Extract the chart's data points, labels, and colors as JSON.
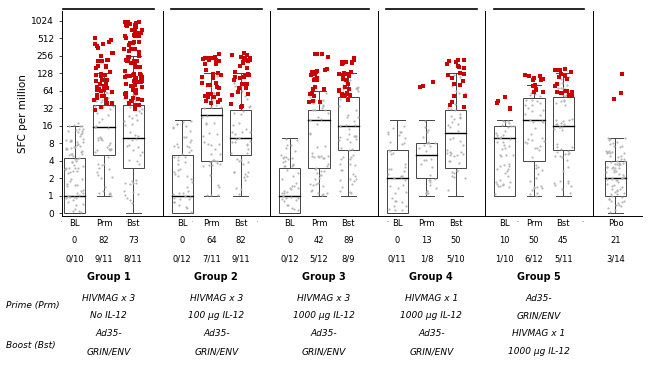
{
  "groups": [
    {
      "name": "Group 1",
      "timepoints": [
        "BL",
        "Prm",
        "Bst"
      ],
      "response_rates": [
        "0",
        "82",
        "73"
      ],
      "fractions": [
        "0/10",
        "9/11",
        "8/11"
      ],
      "boxes": [
        {
          "q1": 0,
          "median": 1,
          "q3": 4.5,
          "whislo": 0,
          "whishi": 16,
          "n_gray": 80,
          "gray_min": 0.5,
          "gray_max": 18,
          "n_red": 0,
          "red_min": 0,
          "red_max": 0
        },
        {
          "q1": 5,
          "median": 15,
          "q3": 36,
          "whislo": 1,
          "whishi": 128,
          "n_gray": 60,
          "gray_min": 1,
          "gray_max": 128,
          "n_red": 50,
          "red_min": 30,
          "red_max": 512
        },
        {
          "q1": 3,
          "median": 10,
          "q3": 36,
          "whislo": 0,
          "whishi": 256,
          "n_gray": 50,
          "gray_min": 0.5,
          "gray_max": 128,
          "n_red": 80,
          "red_min": 30,
          "red_max": 1024
        }
      ]
    },
    {
      "name": "Group 2",
      "timepoints": [
        "BL",
        "Prm",
        "Bst"
      ],
      "response_rates": [
        "0",
        "64",
        "82"
      ],
      "fractions": [
        "0/12",
        "7/11",
        "9/11"
      ],
      "boxes": [
        {
          "q1": 0,
          "median": 1,
          "q3": 5,
          "whislo": 0,
          "whishi": 20,
          "n_gray": 50,
          "gray_min": 0.5,
          "gray_max": 20,
          "n_red": 0,
          "red_min": 0,
          "red_max": 0
        },
        {
          "q1": 4,
          "median": 24,
          "q3": 32,
          "whislo": 1,
          "whishi": 128,
          "n_gray": 45,
          "gray_min": 1,
          "gray_max": 128,
          "n_red": 35,
          "red_min": 40,
          "red_max": 300
        },
        {
          "q1": 5,
          "median": 10,
          "q3": 30,
          "whislo": 1,
          "whishi": 128,
          "n_gray": 50,
          "gray_min": 1,
          "gray_max": 128,
          "n_red": 35,
          "red_min": 30,
          "red_max": 300
        }
      ]
    },
    {
      "name": "Group 3",
      "timepoints": [
        "BL",
        "Prm",
        "Bst"
      ],
      "response_rates": [
        "0",
        "42",
        "89"
      ],
      "fractions": [
        "0/12",
        "5/12",
        "8/9"
      ],
      "boxes": [
        {
          "q1": 0,
          "median": 1,
          "q3": 3,
          "whislo": 0,
          "whishi": 10,
          "n_gray": 45,
          "gray_min": 0.5,
          "gray_max": 10,
          "n_red": 0,
          "red_min": 0,
          "red_max": 0
        },
        {
          "q1": 3,
          "median": 20,
          "q3": 30,
          "whislo": 1,
          "whishi": 64,
          "n_gray": 55,
          "gray_min": 1,
          "gray_max": 64,
          "n_red": 25,
          "red_min": 40,
          "red_max": 300
        },
        {
          "q1": 6,
          "median": 16,
          "q3": 50,
          "whislo": 1,
          "whishi": 128,
          "n_gray": 60,
          "gray_min": 1,
          "gray_max": 128,
          "n_red": 30,
          "red_min": 40,
          "red_max": 256
        }
      ]
    },
    {
      "name": "Group 4",
      "timepoints": [
        "BL",
        "Prm",
        "Bst"
      ],
      "response_rates": [
        "0",
        "13",
        "50"
      ],
      "fractions": [
        "0/11",
        "1/8",
        "5/10"
      ],
      "boxes": [
        {
          "q1": 0,
          "median": 2,
          "q3": 6,
          "whislo": 0,
          "whishi": 20,
          "n_gray": 40,
          "gray_min": 0.5,
          "gray_max": 20,
          "n_red": 0,
          "red_min": 0,
          "red_max": 0
        },
        {
          "q1": 2,
          "median": 5,
          "q3": 8,
          "whislo": 1,
          "whishi": 20,
          "n_gray": 30,
          "gray_min": 1,
          "gray_max": 20,
          "n_red": 3,
          "red_min": 30,
          "red_max": 200
        },
        {
          "q1": 3,
          "median": 12,
          "q3": 30,
          "whislo": 1,
          "whishi": 128,
          "n_gray": 45,
          "gray_min": 1,
          "gray_max": 128,
          "n_red": 20,
          "red_min": 30,
          "red_max": 256
        }
      ]
    },
    {
      "name": "Group 5",
      "timepoints": [
        "BL",
        "Prm",
        "Bst"
      ],
      "response_rates": [
        "10",
        "50",
        "45"
      ],
      "fractions": [
        "1/10",
        "6/12",
        "5/11"
      ],
      "boxes": [
        {
          "q1": 1,
          "median": 10,
          "q3": 16,
          "whislo": 1,
          "whishi": 20,
          "n_gray": 45,
          "gray_min": 1,
          "gray_max": 20,
          "n_red": 5,
          "red_min": 25,
          "red_max": 50
        },
        {
          "q1": 4,
          "median": 20,
          "q3": 48,
          "whislo": 1,
          "whishi": 80,
          "n_gray": 50,
          "gray_min": 1,
          "gray_max": 80,
          "n_red": 15,
          "red_min": 60,
          "red_max": 128
        },
        {
          "q1": 6,
          "median": 16,
          "q3": 50,
          "whislo": 1,
          "whishi": 128,
          "n_gray": 55,
          "gray_min": 1,
          "gray_max": 128,
          "n_red": 20,
          "red_min": 50,
          "red_max": 160
        }
      ]
    },
    {
      "name": "Pbo",
      "timepoints": [
        "Pbo"
      ],
      "response_rates": [
        "21"
      ],
      "fractions": [
        "3/14"
      ],
      "boxes": [
        {
          "q1": 1,
          "median": 2,
          "q3": 4,
          "whislo": 0,
          "whishi": 10,
          "n_gray": 80,
          "gray_min": 0.5,
          "gray_max": 10,
          "n_red": 3,
          "red_min": 30,
          "red_max": 128
        }
      ]
    }
  ],
  "group_labels": [
    [
      "Group 1",
      "HIVMAG x 3",
      "No IL-12",
      "Ad35-",
      "GRIN/ENV"
    ],
    [
      "Group 2",
      "HIVMAG x 3",
      "100 μg IL-12",
      "Ad35-",
      "GRIN/ENV"
    ],
    [
      "Group 3",
      "HIVMAG x 3",
      "1000 μg IL-12",
      "Ad35-",
      "GRIN/ENV"
    ],
    [
      "Group 4",
      "HIVMAG x 1",
      "1000 μg IL-12",
      "Ad35-",
      "GRIN/ENV"
    ],
    [
      "Group 5",
      "Ad35-",
      "GRIN/ENV",
      "HIVMAG x 1",
      "1000 μg IL-12"
    ]
  ],
  "ylabel": "SFC per million",
  "yticks": [
    0,
    1,
    2,
    4,
    8,
    16,
    32,
    64,
    128,
    256,
    512,
    1024
  ],
  "ylabels": [
    "0",
    "1",
    "2",
    "4",
    "8",
    "16",
    "32",
    "64",
    "128",
    "256",
    "512",
    "1024"
  ],
  "red_dot_color": "#cc0000",
  "gray_dot_color": "#b0b0b0"
}
